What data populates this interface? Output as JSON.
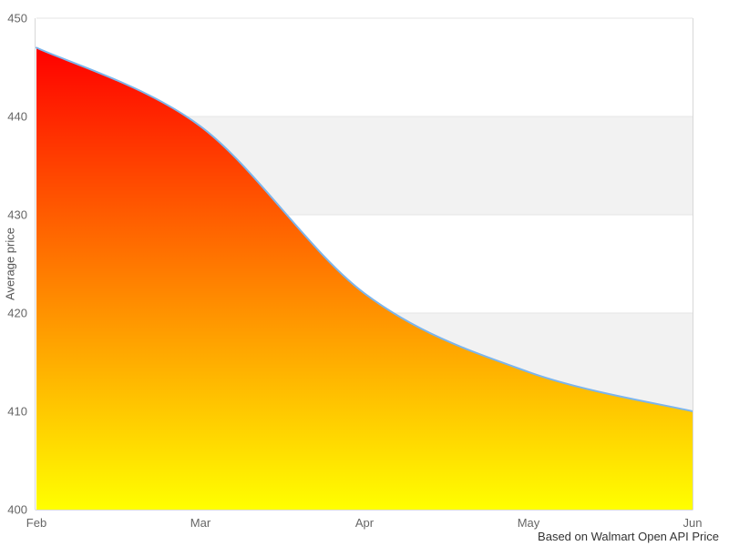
{
  "chart_data": {
    "type": "area",
    "curve": "spline",
    "title": "",
    "categories": [
      "Feb",
      "Mar",
      "Apr",
      "May",
      "Jun"
    ],
    "series": [
      {
        "name": "Average price",
        "values": [
          447,
          439,
          422,
          414,
          410
        ]
      }
    ],
    "xlabel": "",
    "ylabel": "Average price",
    "ylim": [
      400,
      450
    ],
    "yticks": [
      400,
      410,
      420,
      430,
      440,
      450
    ],
    "grid": true,
    "legend": "none",
    "shaded_bands": [
      [
        410,
        420
      ],
      [
        430,
        440
      ]
    ],
    "caption": "Based on Walmart Open API Price",
    "colors": {
      "line": "#7cb5ec",
      "fill_gradient_top": "#ff0000",
      "fill_gradient_bottom": "#ffff00",
      "band": "#f2f2f2",
      "gridline": "#e6e6e6",
      "axis_line": "#d8d8d8",
      "tick_label": "#666666",
      "axis_title": "#555555",
      "caption_text": "#333333"
    }
  }
}
